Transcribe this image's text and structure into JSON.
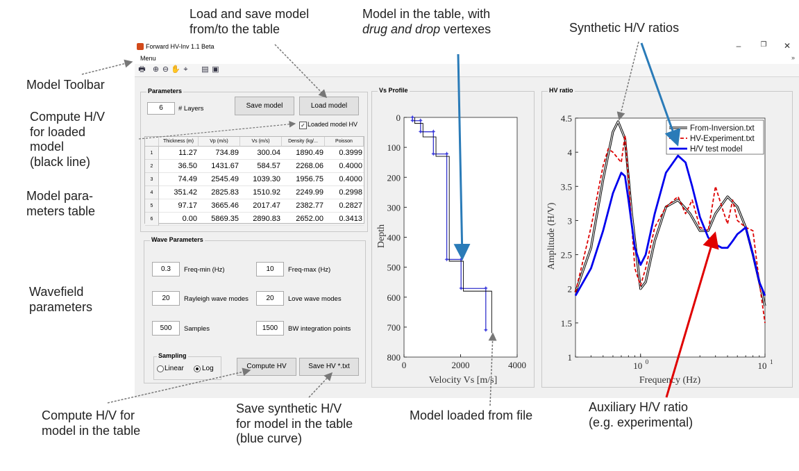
{
  "window": {
    "title": "Forward HV-Inv 1.1 Beta",
    "menu": "Menu",
    "toolbar_icons": [
      "print-icon",
      "zoom-in-icon",
      "zoom-out-icon",
      "pan-icon",
      "data-cursor-icon",
      "insert-legend-icon",
      "insert-colorbar-icon"
    ]
  },
  "parameters": {
    "title": "Parameters",
    "layers_value": "6",
    "layers_label": "# Layers",
    "save_model": "Save model",
    "load_model": "Load model",
    "loaded_model_hv": "Loaded model HV",
    "columns": [
      "Thickness (m)",
      "Vp (m/s)",
      "Vs (m/s)",
      "Density (kg/...",
      "Poisson"
    ],
    "rows": [
      [
        "1",
        "11.27",
        "734.89",
        "300.04",
        "1890.49",
        "0.3999"
      ],
      [
        "2",
        "36.50",
        "1431.67",
        "584.57",
        "2268.06",
        "0.4000"
      ],
      [
        "3",
        "74.49",
        "2545.49",
        "1039.30",
        "1956.75",
        "0.4000"
      ],
      [
        "4",
        "351.42",
        "2825.83",
        "1510.92",
        "2249.99",
        "0.2998"
      ],
      [
        "5",
        "97.17",
        "3665.46",
        "2017.47",
        "2382.77",
        "0.2827"
      ],
      [
        "6",
        "0.00",
        "5869.35",
        "2890.83",
        "2652.00",
        "0.3413"
      ]
    ]
  },
  "wave": {
    "title": "Wave Parameters",
    "freq_min": "0.3",
    "freq_min_label": "Freq-min (Hz)",
    "freq_max": "10",
    "freq_max_label": "Freq-max (Hz)",
    "rayleigh": "20",
    "rayleigh_label": "Rayleigh wave modes",
    "love": "20",
    "love_label": "Love wave modes",
    "samples": "500",
    "samples_label": "Samples",
    "bw": "1500",
    "bw_label": "BW integration points",
    "sampling_title": "Sampling",
    "linear": "Linear",
    "log": "Log",
    "compute_hv": "Compute HV",
    "save_hv": "Save HV *.txt"
  },
  "vs_profile": {
    "title": "Vs Profile",
    "xlabel": "Velocity Vs [m/s]",
    "ylabel": "Depth",
    "xticks": [
      "0",
      "2000",
      "4000"
    ],
    "yticks": [
      "0",
      "100",
      "200",
      "300",
      "400",
      "500",
      "600",
      "700",
      "800"
    ]
  },
  "hv_ratio": {
    "title": "HV ratio",
    "xlabel": "Frequency (Hz)",
    "ylabel": "Amplitude (H/V)",
    "yticks": [
      "1",
      "1.5",
      "2",
      "2.5",
      "3",
      "3.5",
      "4",
      "4.5"
    ],
    "xticks": [
      "10",
      "10"
    ],
    "xtick_exps": [
      "0",
      "1"
    ]
  },
  "annotations": {
    "load_save": [
      "Load and save model",
      "from/to the table"
    ],
    "model_table": [
      "Model in the table, with",
      "drug and drop",
      "vertexes"
    ],
    "synthetic": "Synthetic H/V ratios",
    "toolbar": "Model Toolbar",
    "compute_loaded": [
      "Compute H/V",
      "for loaded",
      "model (black",
      "line)"
    ],
    "compute_loaded_lines": [
      "Compute H/V",
      "for loaded",
      "model",
      "(black line)"
    ],
    "model_params": [
      "Model para-",
      "meters table"
    ],
    "wavefield": [
      "Wavefield",
      "parameters"
    ],
    "compute_table": [
      "Compute H/V for",
      "model in the table"
    ],
    "save_synth": [
      "Save synthetic H/V",
      "for model in the table",
      "(blue curve)"
    ],
    "model_loaded": "Model loaded from file",
    "auxiliary": [
      "Auxiliary H/V ratio",
      "(e.g. experimental)"
    ]
  },
  "chart_data": [
    {
      "type": "line",
      "title": "Vs Profile",
      "xlabel": "Velocity Vs [m/s]",
      "ylabel": "Depth",
      "xlim": [
        0,
        4000
      ],
      "ylim": [
        800,
        0
      ],
      "series": [
        {
          "x": [
            300,
            300,
            585,
            585,
            1039,
            1039,
            1511,
            1511,
            2017,
            2017,
            2891,
            2891
          ],
          "y": [
            0,
            11,
            11,
            48,
            48,
            122,
            122,
            474,
            474,
            571,
            571,
            710
          ],
          "color": "#3333cc"
        },
        {
          "x": [
            380,
            380,
            670,
            670,
            1130,
            1130,
            1600,
            1600,
            2100,
            2100,
            3100,
            3100
          ],
          "y": [
            0,
            20,
            20,
            65,
            65,
            130,
            130,
            480,
            480,
            580,
            580,
            720
          ],
          "color": "#000000"
        }
      ]
    },
    {
      "type": "line",
      "title": "HV ratio",
      "xlabel": "Frequency (Hz)",
      "ylabel": "Amplitude (H/V)",
      "x_scale": "log",
      "xlim": [
        0.3,
        10
      ],
      "ylim": [
        1,
        4.5
      ],
      "legend_position": "top-right",
      "series": [
        {
          "name": "From-Inversion.txt",
          "color": "#000000",
          "x": [
            0.3,
            0.4,
            0.5,
            0.6,
            0.66,
            0.75,
            0.85,
            1.0,
            1.1,
            1.3,
            1.6,
            2.0,
            2.5,
            3.0,
            3.5,
            4.0,
            5.0,
            6.0,
            7.0,
            8.0,
            9.0,
            10.0
          ],
          "y": [
            1.95,
            2.6,
            3.6,
            4.3,
            4.45,
            4.2,
            3.1,
            2.0,
            2.1,
            2.7,
            3.2,
            3.3,
            3.1,
            2.85,
            2.85,
            3.1,
            3.35,
            3.2,
            2.9,
            2.5,
            2.1,
            1.75
          ]
        },
        {
          "name": "HV-Experiment.txt",
          "color": "#dd0000",
          "x": [
            0.3,
            0.4,
            0.5,
            0.55,
            0.6,
            0.7,
            0.75,
            0.8,
            0.9,
            1.0,
            1.1,
            1.3,
            1.6,
            2.0,
            2.3,
            2.6,
            3.0,
            3.5,
            4.0,
            4.5,
            5.0,
            5.5,
            6.0,
            7.0,
            8.0,
            9.0,
            10.0
          ],
          "y": [
            1.95,
            2.9,
            3.8,
            4.05,
            4.0,
            3.85,
            4.25,
            3.6,
            2.3,
            2.05,
            2.3,
            2.9,
            3.2,
            3.35,
            3.1,
            3.3,
            2.9,
            2.85,
            3.5,
            3.2,
            2.95,
            3.3,
            3.0,
            2.9,
            2.85,
            2.1,
            1.5
          ]
        },
        {
          "name": "H/V test model",
          "color": "#0000ee",
          "x": [
            0.3,
            0.4,
            0.5,
            0.6,
            0.7,
            0.75,
            0.8,
            0.9,
            1.0,
            1.1,
            1.3,
            1.6,
            2.0,
            2.3,
            2.6,
            3.0,
            3.5,
            4.0,
            4.5,
            5.0,
            5.5,
            6.0,
            6.5,
            7.0,
            8.0,
            9.0,
            10.0
          ],
          "y": [
            1.9,
            2.3,
            2.85,
            3.4,
            3.7,
            3.65,
            3.3,
            2.6,
            2.35,
            2.5,
            3.1,
            3.7,
            3.95,
            3.85,
            3.5,
            3.05,
            2.75,
            2.65,
            2.6,
            2.6,
            2.7,
            2.8,
            2.85,
            2.9,
            2.5,
            2.1,
            1.9
          ]
        }
      ]
    }
  ]
}
